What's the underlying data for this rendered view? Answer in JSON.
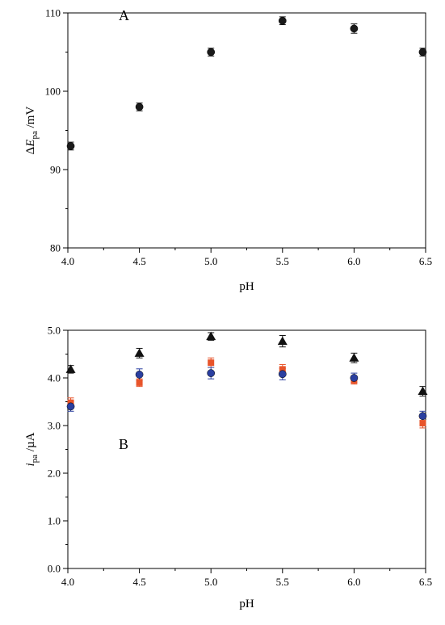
{
  "chart_data": [
    {
      "type": "scatter",
      "panel_label": "A",
      "xlabel": "pH",
      "ylabel": {
        "prefix": "Δ",
        "symbol": "E",
        "subscript": "pa",
        "unit": " /mV"
      },
      "xlim": [
        4.0,
        6.5
      ],
      "ylim": [
        80,
        110
      ],
      "xticks": [
        "4.0",
        "4.5",
        "5.0",
        "5.5",
        "6.0",
        "6.5"
      ],
      "yticks": [
        "80",
        "90",
        "100",
        "110"
      ],
      "grid": false,
      "series": [
        {
          "marker": "circle",
          "color": "#1a1a1a",
          "x": [
            4.02,
            4.5,
            5.0,
            5.5,
            6.0,
            6.48
          ],
          "y": [
            93,
            98,
            105,
            109,
            108,
            105
          ],
          "err": [
            0.5,
            0.5,
            0.5,
            0.5,
            0.6,
            0.5
          ]
        }
      ]
    },
    {
      "type": "scatter",
      "panel_label": "B",
      "xlabel": "pH",
      "ylabel": {
        "prefix": "",
        "symbol": "i",
        "subscript": "pa",
        "unit": " /µA"
      },
      "xlim": [
        4.0,
        6.5
      ],
      "ylim": [
        0.0,
        5.0
      ],
      "xticks": [
        "4.0",
        "4.5",
        "5.0",
        "5.5",
        "6.0",
        "6.5"
      ],
      "yticks": [
        "0.0",
        "1.0",
        "2.0",
        "3.0",
        "4.0",
        "5.0"
      ],
      "grid": false,
      "series": [
        {
          "marker": "triangle",
          "color": "#111111",
          "x": [
            4.02,
            4.5,
            5.0,
            5.5,
            6.0,
            6.48
          ],
          "y": [
            4.18,
            4.52,
            4.87,
            4.77,
            4.42,
            3.72
          ],
          "err": [
            0.08,
            0.1,
            0.08,
            0.12,
            0.1,
            0.1
          ]
        },
        {
          "marker": "square",
          "color": "#e8542a",
          "x": [
            4.02,
            4.5,
            5.0,
            5.5,
            6.0,
            6.48
          ],
          "y": [
            3.48,
            3.9,
            4.32,
            4.18,
            3.95,
            3.05
          ],
          "err": [
            0.1,
            0.08,
            0.1,
            0.1,
            0.08,
            0.1
          ]
        },
        {
          "marker": "circle",
          "color": "#2a3fa0",
          "x": [
            4.02,
            4.5,
            5.0,
            5.5,
            6.0,
            6.48
          ],
          "y": [
            3.4,
            4.07,
            4.1,
            4.08,
            4.0,
            3.2
          ],
          "err": [
            0.1,
            0.12,
            0.12,
            0.12,
            0.1,
            0.1
          ]
        }
      ]
    }
  ]
}
